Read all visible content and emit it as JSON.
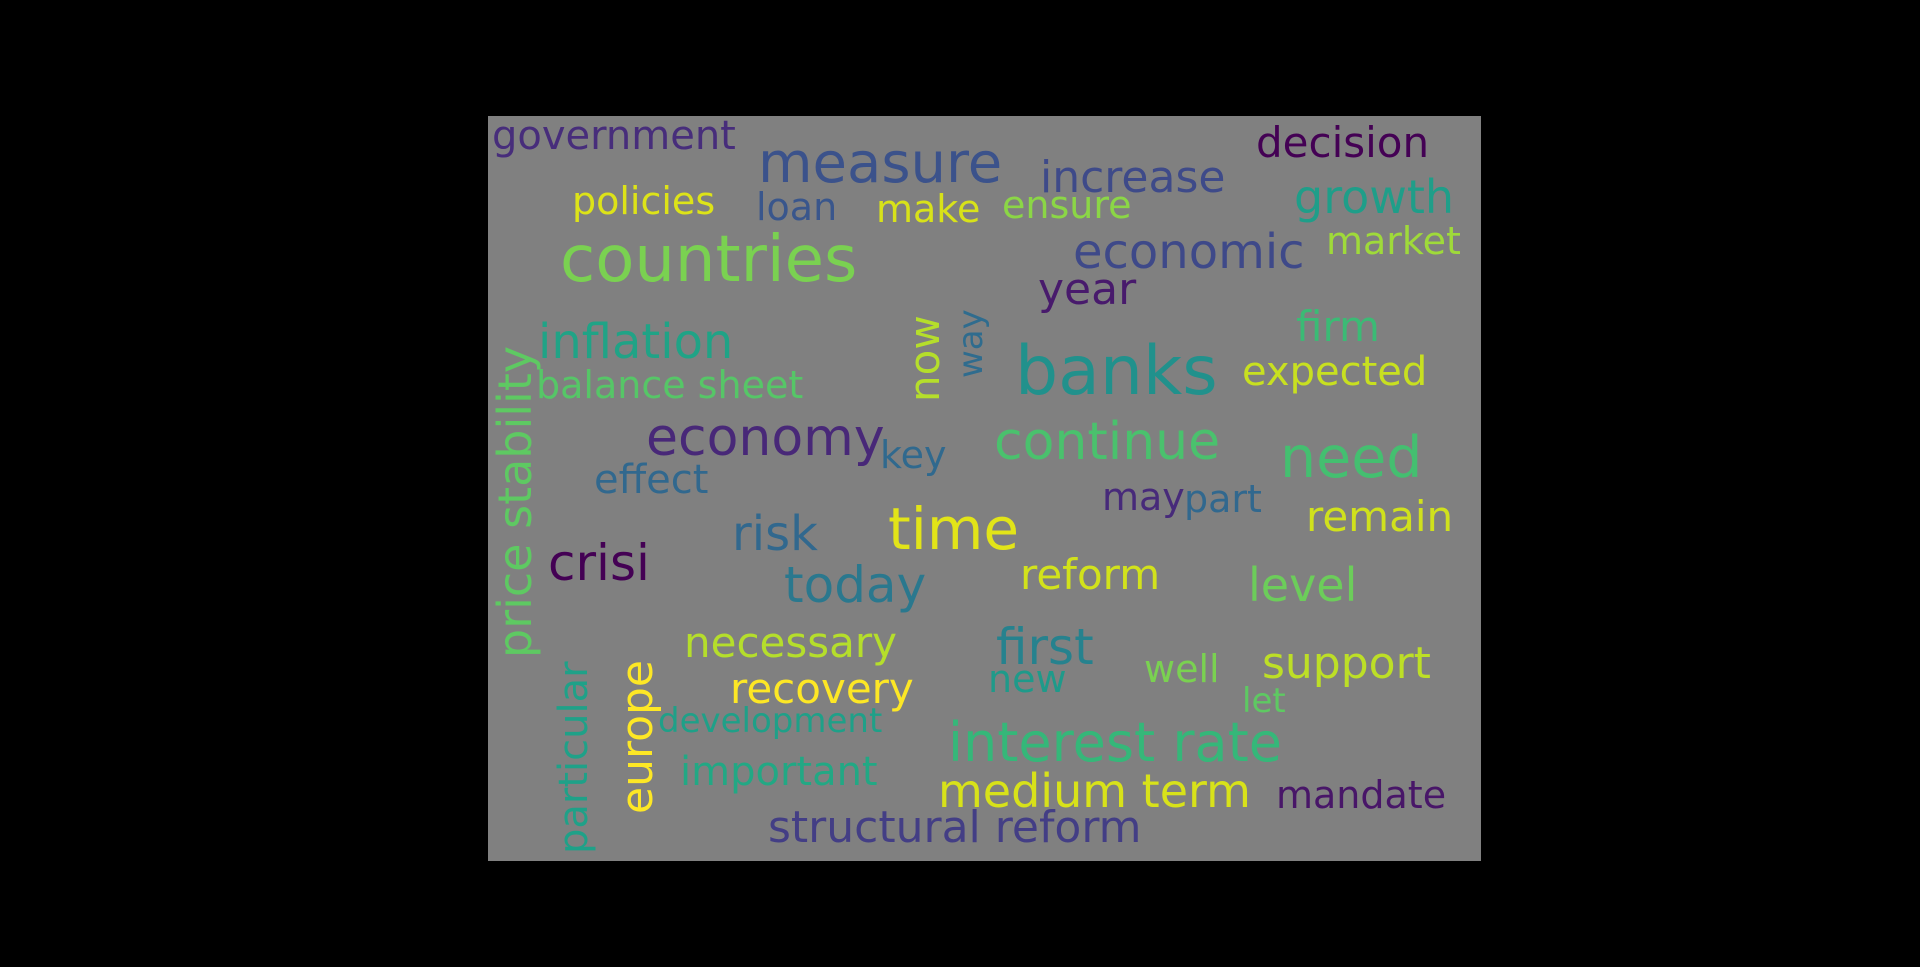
{
  "words": [
    {
      "text": "banks",
      "color": "#21918c"
    },
    {
      "text": "countries",
      "color": "#7ad151"
    },
    {
      "text": "time",
      "color": "#e2e418"
    },
    {
      "text": "measure",
      "color": "#3b528b"
    },
    {
      "text": "continue",
      "color": "#4ac16d"
    },
    {
      "text": "need",
      "color": "#44bf70"
    },
    {
      "text": "interest rate",
      "color": "#35b779"
    },
    {
      "text": "economy",
      "color": "#482878"
    },
    {
      "text": "economic",
      "color": "#3e4989"
    },
    {
      "text": "inflation",
      "color": "#20a386"
    },
    {
      "text": "price stability",
      "color": "#5ec962"
    },
    {
      "text": "crisi",
      "color": "#440154"
    },
    {
      "text": "today",
      "color": "#2a788e"
    },
    {
      "text": "risk",
      "color": "#31688e"
    },
    {
      "text": "medium term",
      "color": "#d8e219"
    },
    {
      "text": "europe",
      "color": "#fde725"
    },
    {
      "text": "increase",
      "color": "#3e4a89"
    },
    {
      "text": "growth",
      "color": "#1f9e89"
    },
    {
      "text": "decision",
      "color": "#440154"
    },
    {
      "text": "year",
      "color": "#481a6c"
    },
    {
      "text": "first",
      "color": "#26828e"
    },
    {
      "text": "structural reform",
      "color": "#433e85"
    },
    {
      "text": "support",
      "color": "#bddf26"
    },
    {
      "text": "remain",
      "color": "#d0e11c"
    },
    {
      "text": "level",
      "color": "#6ccd5a"
    },
    {
      "text": "recovery",
      "color": "#fde725"
    },
    {
      "text": "necessary",
      "color": "#b5de2b"
    },
    {
      "text": "government",
      "color": "#472d7b"
    },
    {
      "text": "particular",
      "color": "#1fa188"
    },
    {
      "text": "reform",
      "color": "#d2e21b"
    },
    {
      "text": "expected",
      "color": "#c8e020"
    },
    {
      "text": "effect",
      "color": "#31688e"
    },
    {
      "text": "firm",
      "color": "#3bbb75"
    },
    {
      "text": "now",
      "color": "#b5de2b"
    },
    {
      "text": "important",
      "color": "#22a884"
    },
    {
      "text": "market",
      "color": "#9fda3a"
    },
    {
      "text": "policies",
      "color": "#dde318"
    },
    {
      "text": "balance sheet",
      "color": "#56c667"
    },
    {
      "text": "mandate",
      "color": "#481668"
    },
    {
      "text": "make",
      "color": "#d8e219"
    },
    {
      "text": "ensure",
      "color": "#8bd646"
    },
    {
      "text": "may",
      "color": "#472a7a"
    },
    {
      "text": "part",
      "color": "#31688e"
    },
    {
      "text": "well",
      "color": "#7ad151"
    },
    {
      "text": "new",
      "color": "#1f9a8a"
    },
    {
      "text": "loan",
      "color": "#39568c"
    },
    {
      "text": "key",
      "color": "#30698e"
    },
    {
      "text": "way",
      "color": "#2f6c8e"
    },
    {
      "text": "development",
      "color": "#1fa088"
    },
    {
      "text": "let",
      "color": "#5ec962"
    }
  ]
}
